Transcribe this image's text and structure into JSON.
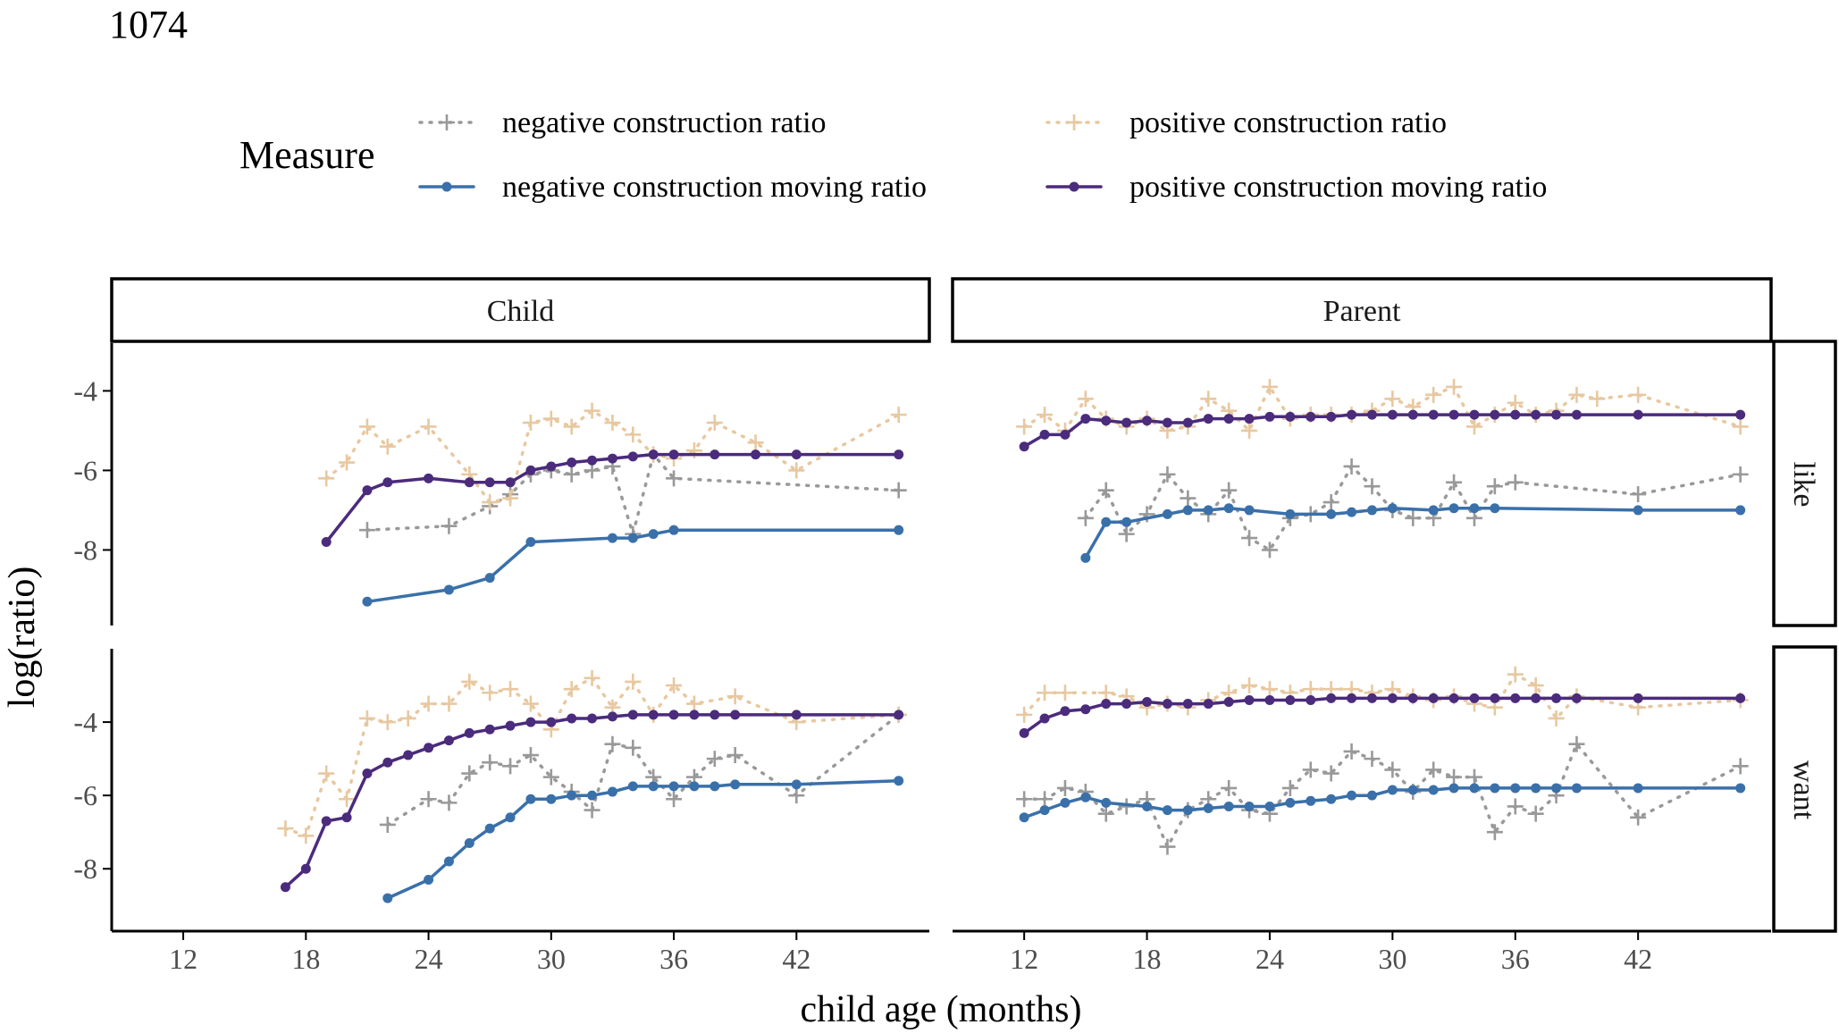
{
  "page_number": "1074",
  "chart_data": {
    "type": "line",
    "legend": {
      "title": "Measure",
      "placement": "top",
      "entries": [
        "negative construction ratio",
        "positive construction ratio",
        "negative construction moving ratio",
        "positive construction moving ratio"
      ]
    },
    "xlabel": "child age (months)",
    "ylabel": "log(ratio)",
    "xlim": [
      8.5,
      48.5
    ],
    "x_ticks": [
      12,
      18,
      24,
      30,
      36,
      42
    ],
    "ylim": {
      "like": [
        -9.9,
        -2.8
      ],
      "want": [
        -9.7,
        -2.0
      ]
    },
    "y_ticks": [
      -8,
      -6,
      -4
    ],
    "grid": false,
    "columns": [
      "Child",
      "Parent"
    ],
    "rows": [
      "like",
      "want"
    ],
    "colors": {
      "negative construction ratio": "#999999",
      "positive construction ratio": "#E8C8A0",
      "negative construction moving ratio": "#3A70AA",
      "positive construction moving ratio": "#4B2B7C"
    },
    "panels": [
      {
        "column": "Child",
        "row": "like",
        "series": [
          {
            "name": "negative construction ratio",
            "x": [
              21,
              25,
              27,
              28,
              29,
              30,
              31,
              32,
              33,
              34,
              35,
              36,
              47
            ],
            "y": [
              -7.5,
              -7.4,
              -6.9,
              -6.6,
              -6.1,
              -6.0,
              -6.1,
              -6.0,
              -5.9,
              -7.6,
              -5.6,
              -6.2,
              -6.5
            ]
          },
          {
            "name": "positive construction ratio",
            "x": [
              19,
              20,
              21,
              22,
              24,
              26,
              27,
              28,
              29,
              30,
              31,
              32,
              33,
              34,
              35,
              36,
              37,
              38,
              40,
              42,
              47
            ],
            "y": [
              -6.2,
              -5.8,
              -4.9,
              -5.4,
              -4.9,
              -6.1,
              -6.8,
              -6.7,
              -4.8,
              -4.7,
              -4.9,
              -4.5,
              -4.8,
              -5.1,
              -5.6,
              -5.7,
              -5.5,
              -4.8,
              -5.3,
              -6.0,
              -4.6
            ]
          },
          {
            "name": "negative construction moving ratio",
            "x": [
              21,
              25,
              27,
              29,
              33,
              34,
              35,
              36,
              47
            ],
            "y": [
              -9.3,
              -9.0,
              -8.7,
              -7.8,
              -7.7,
              -7.7,
              -7.6,
              -7.5,
              -7.5
            ]
          },
          {
            "name": "positive construction moving ratio",
            "x": [
              19,
              21,
              22,
              24,
              26,
              27,
              28,
              29,
              30,
              31,
              32,
              33,
              34,
              35,
              36,
              38,
              40,
              42,
              47
            ],
            "y": [
              -7.8,
              -6.5,
              -6.3,
              -6.2,
              -6.3,
              -6.3,
              -6.3,
              -6.0,
              -5.9,
              -5.8,
              -5.75,
              -5.7,
              -5.65,
              -5.6,
              -5.6,
              -5.6,
              -5.6,
              -5.6,
              -5.6
            ]
          }
        ]
      },
      {
        "column": "Parent",
        "row": "like",
        "series": [
          {
            "name": "negative construction ratio",
            "x": [
              15,
              16,
              17,
              18,
              19,
              20,
              21,
              22,
              23,
              24,
              25,
              26,
              27,
              28,
              29,
              30,
              31,
              32,
              33,
              34,
              35,
              36,
              42,
              47
            ],
            "y": [
              -7.2,
              -6.5,
              -7.6,
              -7.1,
              -6.1,
              -6.7,
              -7.1,
              -6.5,
              -7.7,
              -8.0,
              -7.2,
              -7.1,
              -6.8,
              -5.9,
              -6.4,
              -7.0,
              -7.2,
              -7.2,
              -6.3,
              -7.2,
              -6.4,
              -6.3,
              -6.6,
              -6.1
            ]
          },
          {
            "name": "positive construction ratio",
            "x": [
              12,
              13,
              14,
              15,
              16,
              17,
              18,
              19,
              20,
              21,
              22,
              23,
              24,
              25,
              26,
              27,
              28,
              29,
              30,
              31,
              32,
              33,
              34,
              35,
              36,
              37,
              38,
              39,
              40,
              42,
              47
            ],
            "y": [
              -4.9,
              -4.6,
              -5.0,
              -4.2,
              -4.7,
              -4.9,
              -4.7,
              -5.0,
              -4.9,
              -4.2,
              -4.5,
              -5.0,
              -3.9,
              -4.7,
              -4.6,
              -4.6,
              -4.6,
              -4.5,
              -4.2,
              -4.4,
              -4.1,
              -3.9,
              -4.9,
              -4.6,
              -4.3,
              -4.6,
              -4.5,
              -4.1,
              -4.2,
              -4.1,
              -4.9
            ]
          },
          {
            "name": "negative construction moving ratio",
            "x": [
              15,
              16,
              17,
              19,
              20,
              21,
              22,
              23,
              25,
              27,
              28,
              29,
              30,
              32,
              33,
              34,
              35,
              42,
              47
            ],
            "y": [
              -8.2,
              -7.3,
              -7.3,
              -7.1,
              -7.0,
              -7.0,
              -6.95,
              -7.0,
              -7.1,
              -7.1,
              -7.05,
              -7.0,
              -6.95,
              -7.0,
              -6.95,
              -6.95,
              -6.95,
              -7.0,
              -7.0
            ]
          },
          {
            "name": "positive construction moving ratio",
            "x": [
              12,
              13,
              14,
              15,
              16,
              17,
              18,
              19,
              20,
              21,
              22,
              23,
              24,
              25,
              26,
              27,
              28,
              29,
              30,
              31,
              32,
              33,
              34,
              35,
              36,
              37,
              38,
              39,
              42,
              47
            ],
            "y": [
              -5.4,
              -5.1,
              -5.1,
              -4.7,
              -4.75,
              -4.8,
              -4.75,
              -4.8,
              -4.8,
              -4.7,
              -4.7,
              -4.7,
              -4.65,
              -4.65,
              -4.65,
              -4.65,
              -4.6,
              -4.6,
              -4.6,
              -4.6,
              -4.6,
              -4.6,
              -4.6,
              -4.6,
              -4.6,
              -4.6,
              -4.6,
              -4.6,
              -4.6,
              -4.6
            ]
          }
        ]
      },
      {
        "column": "Child",
        "row": "want",
        "series": [
          {
            "name": "negative construction ratio",
            "x": [
              22,
              24,
              25,
              26,
              27,
              28,
              29,
              30,
              31,
              32,
              33,
              34,
              35,
              36,
              37,
              38,
              39,
              42,
              47
            ],
            "y": [
              -6.8,
              -6.1,
              -6.2,
              -5.4,
              -5.1,
              -5.2,
              -4.9,
              -5.5,
              -5.9,
              -6.4,
              -4.6,
              -4.7,
              -5.5,
              -6.1,
              -5.5,
              -5.0,
              -4.9,
              -6.0,
              -3.8
            ]
          },
          {
            "name": "positive construction ratio",
            "x": [
              17,
              18,
              19,
              20,
              21,
              22,
              23,
              24,
              25,
              26,
              27,
              28,
              29,
              30,
              31,
              32,
              33,
              34,
              35,
              36,
              37,
              39,
              42,
              47
            ],
            "y": [
              -6.9,
              -7.1,
              -5.4,
              -6.1,
              -3.9,
              -4.0,
              -3.9,
              -3.5,
              -3.5,
              -2.9,
              -3.2,
              -3.1,
              -3.5,
              -4.2,
              -3.1,
              -2.8,
              -3.6,
              -2.9,
              -3.8,
              -3.0,
              -3.5,
              -3.3,
              -4.0,
              -3.8
            ]
          },
          {
            "name": "negative construction moving ratio",
            "x": [
              22,
              24,
              25,
              26,
              27,
              28,
              29,
              30,
              31,
              32,
              33,
              34,
              35,
              36,
              37,
              38,
              39,
              42,
              47
            ],
            "y": [
              -8.8,
              -8.3,
              -7.8,
              -7.3,
              -6.9,
              -6.6,
              -6.1,
              -6.1,
              -6.0,
              -6.0,
              -5.9,
              -5.75,
              -5.75,
              -5.75,
              -5.75,
              -5.75,
              -5.7,
              -5.7,
              -5.6
            ]
          },
          {
            "name": "positive construction moving ratio",
            "x": [
              17,
              18,
              19,
              20,
              21,
              22,
              23,
              24,
              25,
              26,
              27,
              28,
              29,
              30,
              31,
              32,
              33,
              34,
              35,
              36,
              37,
              38,
              39,
              42,
              47
            ],
            "y": [
              -8.5,
              -8.0,
              -6.7,
              -6.6,
              -5.4,
              -5.1,
              -4.9,
              -4.7,
              -4.5,
              -4.3,
              -4.2,
              -4.1,
              -4.0,
              -4.0,
              -3.9,
              -3.9,
              -3.85,
              -3.8,
              -3.8,
              -3.8,
              -3.8,
              -3.8,
              -3.8,
              -3.8,
              -3.8
            ]
          }
        ]
      },
      {
        "column": "Parent",
        "row": "want",
        "series": [
          {
            "name": "negative construction ratio",
            "x": [
              12,
              13,
              14,
              15,
              16,
              17,
              18,
              19,
              20,
              21,
              22,
              23,
              24,
              25,
              26,
              27,
              28,
              29,
              30,
              31,
              32,
              33,
              34,
              35,
              36,
              37,
              38,
              39,
              42,
              47
            ],
            "y": [
              -6.1,
              -6.1,
              -5.8,
              -5.9,
              -6.5,
              -6.3,
              -6.1,
              -7.4,
              -6.4,
              -6.1,
              -5.8,
              -6.4,
              -6.5,
              -5.8,
              -5.3,
              -5.4,
              -4.8,
              -5.0,
              -5.3,
              -5.9,
              -5.3,
              -5.5,
              -5.5,
              -7.0,
              -6.3,
              -6.5,
              -6.0,
              -4.6,
              -6.6,
              -5.2
            ]
          },
          {
            "name": "positive construction ratio",
            "x": [
              12,
              13,
              14,
              16,
              17,
              18,
              19,
              20,
              21,
              22,
              23,
              24,
              25,
              26,
              27,
              28,
              29,
              30,
              31,
              32,
              33,
              34,
              35,
              36,
              37,
              38,
              39,
              42,
              47
            ],
            "y": [
              -3.8,
              -3.2,
              -3.2,
              -3.2,
              -3.3,
              -3.6,
              -3.5,
              -3.6,
              -3.4,
              -3.2,
              -3.0,
              -3.1,
              -3.2,
              -3.1,
              -3.1,
              -3.1,
              -3.2,
              -3.1,
              -3.3,
              -3.4,
              -3.3,
              -3.5,
              -3.6,
              -2.7,
              -3.0,
              -3.9,
              -3.3,
              -3.6,
              -3.4
            ]
          },
          {
            "name": "negative construction moving ratio",
            "x": [
              12,
              13,
              14,
              15,
              16,
              18,
              19,
              20,
              21,
              22,
              23,
              24,
              25,
              26,
              27,
              28,
              29,
              30,
              31,
              32,
              33,
              34,
              35,
              36,
              37,
              38,
              39,
              42,
              47
            ],
            "y": [
              -6.6,
              -6.4,
              -6.2,
              -6.05,
              -6.2,
              -6.3,
              -6.4,
              -6.4,
              -6.35,
              -6.3,
              -6.3,
              -6.3,
              -6.2,
              -6.15,
              -6.1,
              -6.0,
              -6.0,
              -5.85,
              -5.85,
              -5.85,
              -5.8,
              -5.8,
              -5.8,
              -5.8,
              -5.8,
              -5.8,
              -5.8,
              -5.8,
              -5.8
            ]
          },
          {
            "name": "positive construction moving ratio",
            "x": [
              12,
              13,
              14,
              15,
              16,
              17,
              18,
              19,
              20,
              21,
              22,
              23,
              24,
              25,
              26,
              27,
              28,
              29,
              30,
              31,
              32,
              33,
              34,
              35,
              36,
              37,
              38,
              39,
              42,
              47
            ],
            "y": [
              -4.3,
              -3.9,
              -3.7,
              -3.65,
              -3.5,
              -3.5,
              -3.45,
              -3.5,
              -3.5,
              -3.5,
              -3.45,
              -3.4,
              -3.4,
              -3.4,
              -3.4,
              -3.35,
              -3.35,
              -3.35,
              -3.35,
              -3.35,
              -3.35,
              -3.35,
              -3.35,
              -3.35,
              -3.35,
              -3.35,
              -3.35,
              -3.35,
              -3.35,
              -3.35
            ]
          }
        ]
      }
    ]
  }
}
